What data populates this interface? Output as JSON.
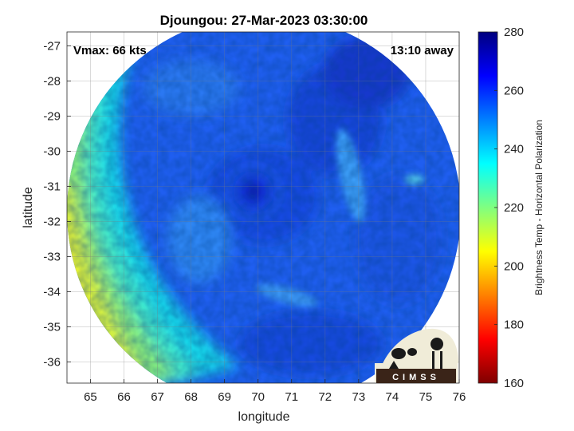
{
  "chart_data": {
    "type": "heatmap",
    "title": "Djoungou: 27-Mar-2023 03:30:00",
    "xlabel": "longitude",
    "ylabel": "latitude",
    "xlim": [
      64.3,
      76.0
    ],
    "ylim": [
      -36.6,
      -26.6
    ],
    "xticks": [
      65,
      66,
      67,
      68,
      69,
      70,
      71,
      72,
      73,
      74,
      75,
      76
    ],
    "yticks": [
      -27,
      -28,
      -29,
      -30,
      -31,
      -32,
      -33,
      -34,
      -35,
      -36
    ],
    "grid": true,
    "annotations": {
      "vmax": "Vmax: 66 kts",
      "time_away": "13:10 away"
    },
    "colorbar": {
      "label": "Brightness Temp - Horizontal Polarization",
      "range": [
        160,
        280
      ],
      "ticks": [
        280,
        260,
        240,
        220,
        200,
        180,
        160
      ],
      "placement": "right",
      "colormap": [
        "#7f0000",
        "#ff0000",
        "#ff8000",
        "#ffff00",
        "#80ff80",
        "#00ffff",
        "#0080ff",
        "#0000ff",
        "#00007f"
      ]
    },
    "swath": {
      "center_lon": 70.2,
      "center_lat": -31.6,
      "shape": "circular"
    },
    "storm_eye": {
      "lon": 70.0,
      "lat": -31.3
    },
    "logo": "CIMSS"
  }
}
